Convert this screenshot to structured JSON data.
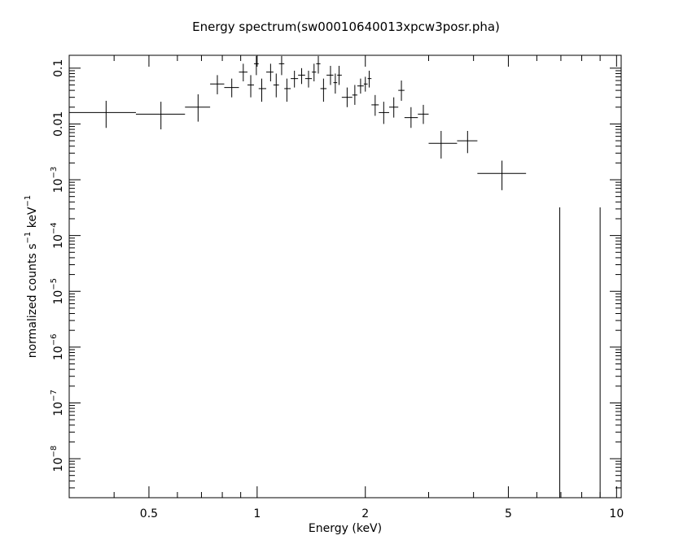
{
  "chart_data": {
    "type": "scatter",
    "title": "Energy spectrum(sw00010640013xpcw3posr.pha)",
    "xlabel": "Energy (keV)",
    "ylabel_text": "normalized counts s",
    "ylabel_exp1": "−1",
    "ylabel_mid": " keV",
    "ylabel_exp2": "−1",
    "x_scale": "log",
    "y_scale": "log",
    "xlim": [
      0.3,
      10.3
    ],
    "ylim": [
      2e-09,
      0.17
    ],
    "x_ticks": [
      {
        "value": 0.5,
        "label": "0.5"
      },
      {
        "value": 1,
        "label": "1"
      },
      {
        "value": 2,
        "label": "2"
      },
      {
        "value": 5,
        "label": "5"
      },
      {
        "value": 10,
        "label": "10"
      }
    ],
    "y_ticks": [
      {
        "value": 0.1,
        "label": "0.1",
        "exp": ""
      },
      {
        "value": 0.01,
        "label": "0.01",
        "exp": ""
      },
      {
        "value": 0.001,
        "label": "10",
        "exp": "−3"
      },
      {
        "value": 0.0001,
        "label": "10",
        "exp": "−4"
      },
      {
        "value": 1e-05,
        "label": "10",
        "exp": "−5"
      },
      {
        "value": 1e-06,
        "label": "10",
        "exp": "−6"
      },
      {
        "value": 1e-07,
        "label": "10",
        "exp": "−7"
      },
      {
        "value": 1e-08,
        "label": "10",
        "exp": "−8"
      }
    ],
    "grid": false,
    "points": [
      {
        "x": 0.38,
        "xlo": 0.3,
        "xhi": 0.46,
        "y": 0.016,
        "ylo": 0.0085,
        "yhi": 0.026
      },
      {
        "x": 0.54,
        "xlo": 0.46,
        "xhi": 0.63,
        "y": 0.015,
        "ylo": 0.008,
        "yhi": 0.025
      },
      {
        "x": 0.685,
        "xlo": 0.63,
        "xhi": 0.74,
        "y": 0.02,
        "ylo": 0.011,
        "yhi": 0.034
      },
      {
        "x": 0.775,
        "xlo": 0.74,
        "xhi": 0.81,
        "y": 0.052,
        "ylo": 0.034,
        "yhi": 0.075
      },
      {
        "x": 0.85,
        "xlo": 0.81,
        "xhi": 0.89,
        "y": 0.045,
        "ylo": 0.03,
        "yhi": 0.065
      },
      {
        "x": 0.915,
        "xlo": 0.89,
        "xhi": 0.94,
        "y": 0.085,
        "ylo": 0.058,
        "yhi": 0.12
      },
      {
        "x": 0.96,
        "xlo": 0.94,
        "xhi": 0.98,
        "y": 0.05,
        "ylo": 0.03,
        "yhi": 0.075
      },
      {
        "x": 0.995,
        "xlo": 0.98,
        "xhi": 1.01,
        "y": 0.12,
        "ylo": 0.075,
        "yhi": 0.165
      },
      {
        "x": 1.03,
        "xlo": 1.01,
        "xhi": 1.06,
        "y": 0.043,
        "ylo": 0.025,
        "yhi": 0.065
      },
      {
        "x": 1.09,
        "xlo": 1.06,
        "xhi": 1.11,
        "y": 0.085,
        "ylo": 0.058,
        "yhi": 0.12
      },
      {
        "x": 1.13,
        "xlo": 1.11,
        "xhi": 1.15,
        "y": 0.05,
        "ylo": 0.03,
        "yhi": 0.08
      },
      {
        "x": 1.17,
        "xlo": 1.15,
        "xhi": 1.19,
        "y": 0.12,
        "ylo": 0.075,
        "yhi": 0.165
      },
      {
        "x": 1.21,
        "xlo": 1.19,
        "xhi": 1.24,
        "y": 0.043,
        "ylo": 0.025,
        "yhi": 0.065
      },
      {
        "x": 1.27,
        "xlo": 1.24,
        "xhi": 1.3,
        "y": 0.065,
        "ylo": 0.045,
        "yhi": 0.09
      },
      {
        "x": 1.33,
        "xlo": 1.3,
        "xhi": 1.36,
        "y": 0.075,
        "ylo": 0.052,
        "yhi": 0.1
      },
      {
        "x": 1.39,
        "xlo": 1.36,
        "xhi": 1.42,
        "y": 0.065,
        "ylo": 0.045,
        "yhi": 0.09
      },
      {
        "x": 1.44,
        "xlo": 1.42,
        "xhi": 1.46,
        "y": 0.085,
        "ylo": 0.058,
        "yhi": 0.12
      },
      {
        "x": 1.48,
        "xlo": 1.46,
        "xhi": 1.5,
        "y": 0.12,
        "ylo": 0.08,
        "yhi": 0.165
      },
      {
        "x": 1.53,
        "xlo": 1.5,
        "xhi": 1.56,
        "y": 0.043,
        "ylo": 0.025,
        "yhi": 0.065
      },
      {
        "x": 1.6,
        "xlo": 1.56,
        "xhi": 1.63,
        "y": 0.075,
        "ylo": 0.05,
        "yhi": 0.11
      },
      {
        "x": 1.65,
        "xlo": 1.63,
        "xhi": 1.67,
        "y": 0.055,
        "ylo": 0.035,
        "yhi": 0.08
      },
      {
        "x": 1.69,
        "xlo": 1.67,
        "xhi": 1.72,
        "y": 0.075,
        "ylo": 0.05,
        "yhi": 0.11
      },
      {
        "x": 1.78,
        "xlo": 1.72,
        "xhi": 1.84,
        "y": 0.03,
        "ylo": 0.02,
        "yhi": 0.045
      },
      {
        "x": 1.87,
        "xlo": 1.84,
        "xhi": 1.9,
        "y": 0.033,
        "ylo": 0.022,
        "yhi": 0.05
      },
      {
        "x": 1.94,
        "xlo": 1.9,
        "xhi": 1.98,
        "y": 0.048,
        "ylo": 0.035,
        "yhi": 0.065
      },
      {
        "x": 2.0,
        "xlo": 1.98,
        "xhi": 2.03,
        "y": 0.052,
        "ylo": 0.038,
        "yhi": 0.07
      },
      {
        "x": 2.05,
        "xlo": 2.03,
        "xhi": 2.08,
        "y": 0.065,
        "ylo": 0.045,
        "yhi": 0.09
      },
      {
        "x": 2.13,
        "xlo": 2.08,
        "xhi": 2.18,
        "y": 0.022,
        "ylo": 0.014,
        "yhi": 0.033
      },
      {
        "x": 2.25,
        "xlo": 2.18,
        "xhi": 2.33,
        "y": 0.016,
        "ylo": 0.01,
        "yhi": 0.025
      },
      {
        "x": 2.4,
        "xlo": 2.33,
        "xhi": 2.47,
        "y": 0.02,
        "ylo": 0.013,
        "yhi": 0.03
      },
      {
        "x": 2.52,
        "xlo": 2.47,
        "xhi": 2.57,
        "y": 0.04,
        "ylo": 0.026,
        "yhi": 0.06
      },
      {
        "x": 2.68,
        "xlo": 2.57,
        "xhi": 2.8,
        "y": 0.013,
        "ylo": 0.0085,
        "yhi": 0.02
      },
      {
        "x": 2.9,
        "xlo": 2.8,
        "xhi": 3.0,
        "y": 0.015,
        "ylo": 0.01,
        "yhi": 0.022
      },
      {
        "x": 3.25,
        "xlo": 3.0,
        "xhi": 3.6,
        "y": 0.0045,
        "ylo": 0.0024,
        "yhi": 0.0075
      },
      {
        "x": 3.85,
        "xlo": 3.6,
        "xhi": 4.1,
        "y": 0.005,
        "ylo": 0.003,
        "yhi": 0.0075
      },
      {
        "x": 4.8,
        "xlo": 4.1,
        "xhi": 5.6,
        "y": 0.0013,
        "ylo": 0.00065,
        "yhi": 0.0022
      },
      {
        "x": 6.95,
        "xlo": 6.95,
        "xhi": 6.95,
        "y": null,
        "ylo": 2e-09,
        "yhi": 0.00032
      },
      {
        "x": 9.0,
        "xlo": 9.0,
        "xhi": 9.0,
        "y": null,
        "ylo": 2e-09,
        "yhi": 0.00032
      }
    ]
  }
}
